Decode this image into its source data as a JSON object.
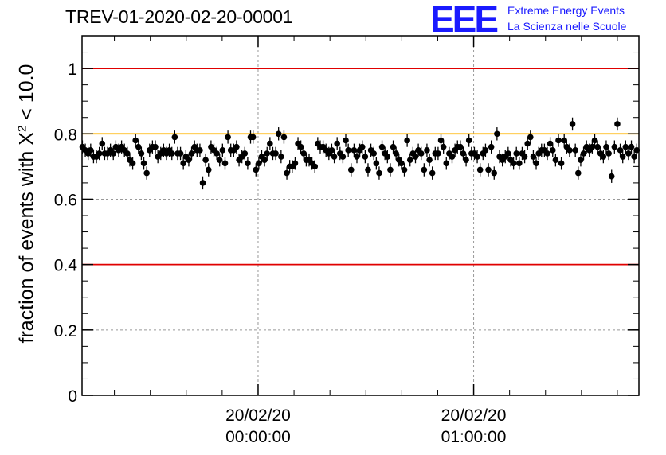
{
  "title": "TREV-01-2020-02-20-00001",
  "logo": {
    "mark": "EEE",
    "line1": "Extreme Energy Events",
    "line2": "La Scienza nelle Scuole"
  },
  "ylabel": {
    "prefix": "fraction of events with ",
    "chi": "X",
    "exponent": "2",
    "suffix": " < 10.0"
  },
  "colors": {
    "red_line": "#e00000",
    "orange_line": "#ffb300",
    "logo_blue": "#1a1aff",
    "marker": "#000000",
    "grid": "#999999"
  },
  "chart_data": {
    "type": "scatter",
    "ylim": [
      0,
      1.1
    ],
    "yticks": [
      {
        "value": 0,
        "label": "0"
      },
      {
        "value": 0.2,
        "label": "0.2"
      },
      {
        "value": 0.4,
        "label": "0.4"
      },
      {
        "value": 0.6,
        "label": "0.6"
      },
      {
        "value": 0.8,
        "label": "0.8"
      },
      {
        "value": 1,
        "label": "1"
      }
    ],
    "xlim_minutes": [
      -49,
      106
    ],
    "xticks": [
      {
        "value": 0,
        "date": "20/02/20",
        "time": "00:00:00"
      },
      {
        "value": 60,
        "date": "20/02/20",
        "time": "01:00:00"
      }
    ],
    "grid": true,
    "reference_lines": [
      {
        "value": 1.0,
        "color": "#e00000"
      },
      {
        "value": 0.8,
        "color": "#ffb300"
      },
      {
        "value": 0.4,
        "color": "#e00000"
      }
    ],
    "error": 0.02,
    "x_minutes": [
      -48.9,
      -48.1,
      -47.3,
      -46.6,
      -45.8,
      -45,
      -44.2,
      -43.4,
      -42.7,
      -41.9,
      -41.1,
      -40.3,
      -39.6,
      -38.8,
      -38,
      -37.2,
      -36.4,
      -35.7,
      -34.9,
      -34.1,
      -33.3,
      -32.5,
      -31.8,
      -31,
      -30.2,
      -29.4,
      -28.6,
      -27.9,
      -27.1,
      -26.3,
      -25.5,
      -24.7,
      -24,
      -23.2,
      -22.4,
      -21.6,
      -20.8,
      -20.1,
      -19.3,
      -18.5,
      -17.7,
      -17,
      -16.2,
      -15.4,
      -14.6,
      -13.8,
      -13.1,
      -12.3,
      -11.5,
      -10.7,
      -9.9,
      -9.2,
      -8.4,
      -7.6,
      -6.8,
      -6,
      -5.3,
      -4.5,
      -3.7,
      -2.9,
      -2.1,
      -1.4,
      -0.6,
      0.2,
      1,
      1.8,
      2.5,
      3.3,
      4.1,
      4.9,
      5.7,
      6.4,
      7.2,
      8,
      8.8,
      9.5,
      10.3,
      11.1,
      11.9,
      12.7,
      13.4,
      14.2,
      15,
      15.8,
      16.6,
      17.3,
      18.1,
      18.9,
      19.7,
      20.5,
      21.2,
      22,
      22.8,
      23.6,
      24.4,
      25.1,
      25.9,
      26.7,
      27.5,
      28.3,
      29,
      29.8,
      30.6,
      31.4,
      32.2,
      32.9,
      33.7,
      34.5,
      35.3,
      36,
      36.8,
      37.6,
      38.4,
      39.2,
      39.9,
      40.7,
      41.5,
      42.3,
      43.1,
      43.8,
      44.6,
      45.4,
      46.2,
      47,
      47.7,
      48.5,
      49.3,
      50.1,
      50.9,
      51.6,
      52.4,
      53.2,
      54,
      54.8,
      55.5,
      56.3,
      57.1,
      57.9,
      58.7,
      59.4,
      60.2,
      61,
      61.8,
      62.6,
      63.3,
      64.1,
      64.9,
      65.7,
      66.5,
      67.2,
      68,
      68.8,
      69.6,
      70.3,
      71.1,
      71.9,
      72.7,
      73.5,
      74.2,
      75,
      75.8,
      76.6,
      77.4,
      78.1,
      78.9,
      79.7,
      80.5,
      81.3,
      82,
      82.8,
      83.6,
      84.4,
      85.2,
      85.9,
      86.7,
      87.5,
      88.3,
      89.1,
      89.8,
      90.6,
      91.4,
      92.2,
      93,
      93.7,
      94.5,
      95.3,
      96.1,
      96.9,
      97.6,
      98.4,
      99.2,
      100,
      100.8,
      101.5,
      102.3,
      103.1,
      103.9,
      104.7,
      105.4
    ],
    "values": [
      0.76,
      0.75,
      0.74,
      0.75,
      0.73,
      0.73,
      0.74,
      0.77,
      0.74,
      0.74,
      0.75,
      0.74,
      0.76,
      0.75,
      0.76,
      0.75,
      0.74,
      0.72,
      0.71,
      0.78,
      0.76,
      0.74,
      0.71,
      0.68,
      0.75,
      0.76,
      0.76,
      0.73,
      0.74,
      0.75,
      0.74,
      0.75,
      0.74,
      0.79,
      0.74,
      0.74,
      0.71,
      0.73,
      0.72,
      0.74,
      0.76,
      0.75,
      0.75,
      0.65,
      0.72,
      0.69,
      0.76,
      0.75,
      0.74,
      0.72,
      0.75,
      0.71,
      0.79,
      0.75,
      0.75,
      0.76,
      0.72,
      0.73,
      0.74,
      0.71,
      0.79,
      0.79,
      0.69,
      0.71,
      0.73,
      0.72,
      0.74,
      0.77,
      0.74,
      0.74,
      0.8,
      0.73,
      0.79,
      0.68,
      0.7,
      0.7,
      0.71,
      0.77,
      0.76,
      0.74,
      0.72,
      0.72,
      0.71,
      0.7,
      0.77,
      0.76,
      0.76,
      0.75,
      0.74,
      0.75,
      0.73,
      0.77,
      0.74,
      0.73,
      0.78,
      0.75,
      0.69,
      0.75,
      0.73,
      0.75,
      0.76,
      0.73,
      0.69,
      0.75,
      0.74,
      0.71,
      0.68,
      0.76,
      0.74,
      0.73,
      0.69,
      0.76,
      0.74,
      0.72,
      0.71,
      0.69,
      0.78,
      0.72,
      0.74,
      0.73,
      0.75,
      0.74,
      0.69,
      0.75,
      0.72,
      0.68,
      0.74,
      0.74,
      0.78,
      0.76,
      0.71,
      0.74,
      0.73,
      0.75,
      0.76,
      0.76,
      0.74,
      0.72,
      0.78,
      0.74,
      0.74,
      0.73,
      0.69,
      0.74,
      0.75,
      0.69,
      0.76,
      0.68,
      0.8,
      0.73,
      0.72,
      0.73,
      0.74,
      0.72,
      0.71,
      0.74,
      0.71,
      0.74,
      0.73,
      0.77,
      0.79,
      0.73,
      0.71,
      0.74,
      0.75,
      0.75,
      0.74,
      0.77,
      0.75,
      0.72,
      0.78,
      0.71,
      0.78,
      0.76,
      0.75,
      0.83,
      0.75,
      0.68,
      0.72,
      0.74,
      0.76,
      0.75,
      0.76,
      0.78,
      0.76,
      0.74,
      0.73,
      0.76,
      0.74,
      0.67,
      0.76,
      0.83,
      0.75,
      0.73,
      0.76,
      0.74,
      0.76,
      0.73,
      0.75
    ]
  }
}
